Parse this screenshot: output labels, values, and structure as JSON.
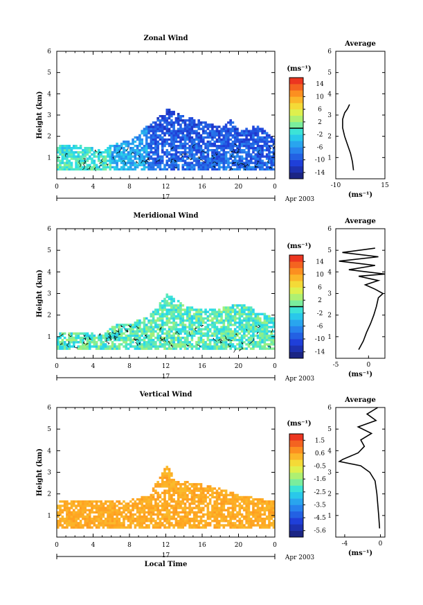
{
  "chart_data": [
    {
      "type": "heatmap",
      "title": "Zonal Wind",
      "xlabel": "",
      "ylabel": "Height (km)",
      "xlim": [
        0,
        24
      ],
      "ylim": [
        0,
        6
      ],
      "x_ticks": [
        "0",
        "4",
        "8",
        "12",
        "16",
        "20",
        "0"
      ],
      "y_ticks": [
        "1",
        "2",
        "3",
        "4",
        "5",
        "6"
      ],
      "date_day": "17",
      "date_label": "Apr 2003",
      "colorbar": {
        "unit": "(ms⁻¹)",
        "ticks": [
          "14",
          "10",
          "6",
          "2",
          "-2",
          "-6",
          "-10",
          "-14"
        ],
        "range": [
          -16,
          16
        ],
        "zero_line": 0
      },
      "data_extent": [
        {
          "t": 0,
          "top": 1.6
        },
        {
          "t": 2,
          "top": 1.6
        },
        {
          "t": 5,
          "top": 1.3
        },
        {
          "t": 6,
          "top": 1.6
        },
        {
          "t": 8,
          "top": 1.8
        },
        {
          "t": 10,
          "top": 2.5
        },
        {
          "t": 12,
          "top": 3.3
        },
        {
          "t": 14,
          "top": 2.9
        },
        {
          "t": 16,
          "top": 2.7
        },
        {
          "t": 18,
          "top": 2.4
        },
        {
          "t": 19,
          "top": 2.8
        },
        {
          "t": 20,
          "top": 2.2
        },
        {
          "t": 22,
          "top": 2.5
        },
        {
          "t": 24,
          "top": 1.8
        }
      ],
      "average_profile": {
        "title": "Average",
        "xlabel": "(ms⁻¹)",
        "xlim": [
          -10,
          15
        ],
        "x_ticks": [
          "-10",
          "15"
        ],
        "y_ticks": [
          "1",
          "2",
          "3",
          "4",
          "5",
          "6"
        ],
        "heights": [
          0.4,
          0.8,
          1.2,
          1.6,
          2.0,
          2.4,
          2.8,
          3.1,
          3.3,
          3.5
        ],
        "values": [
          -1,
          -1.5,
          -2.5,
          -4,
          -5.5,
          -6.5,
          -6.5,
          -5.5,
          -4,
          -3
        ]
      }
    },
    {
      "type": "heatmap",
      "title": "Meridional Wind",
      "xlabel": "",
      "ylabel": "Height (km)",
      "xlim": [
        0,
        24
      ],
      "ylim": [
        0,
        6
      ],
      "x_ticks": [
        "0",
        "4",
        "8",
        "12",
        "16",
        "20",
        "0"
      ],
      "y_ticks": [
        "1",
        "2",
        "3",
        "4",
        "5",
        "6"
      ],
      "date_day": "17",
      "date_label": "Apr 2003",
      "colorbar": {
        "unit": "(ms⁻¹)",
        "ticks": [
          "14",
          "10",
          "6",
          "2",
          "-2",
          "-6",
          "-10",
          "-14"
        ],
        "range": [
          -16,
          16
        ],
        "zero_line": 0
      },
      "data_extent": [
        {
          "t": 0,
          "top": 1.1
        },
        {
          "t": 3,
          "top": 1.2
        },
        {
          "t": 5,
          "top": 1.0
        },
        {
          "t": 6,
          "top": 1.5
        },
        {
          "t": 8,
          "top": 1.6
        },
        {
          "t": 10,
          "top": 1.9
        },
        {
          "t": 11,
          "top": 2.4
        },
        {
          "t": 12,
          "top": 3.0
        },
        {
          "t": 13,
          "top": 2.7
        },
        {
          "t": 14,
          "top": 2.4
        },
        {
          "t": 16,
          "top": 2.2
        },
        {
          "t": 18,
          "top": 2.3
        },
        {
          "t": 20,
          "top": 2.5
        },
        {
          "t": 22,
          "top": 2.2
        },
        {
          "t": 24,
          "top": 1.8
        }
      ],
      "average_profile": {
        "title": "Average",
        "xlabel": "(ms⁻¹)",
        "xlim": [
          -5,
          2.5
        ],
        "x_ticks": [
          "-5",
          "0"
        ],
        "y_ticks": [
          "1",
          "2",
          "3",
          "4",
          "5",
          "6"
        ],
        "heights": [
          0.4,
          0.8,
          1.2,
          1.6,
          2.0,
          2.4,
          2.8,
          3.0,
          3.2,
          3.4,
          3.6,
          3.8,
          3.9,
          4.1,
          4.3,
          4.5,
          4.7,
          4.9,
          5.1
        ],
        "values": [
          -1.5,
          -0.8,
          -0.3,
          0.3,
          0.8,
          1.2,
          1.5,
          2.2,
          1.0,
          -0.5,
          1.5,
          -1.5,
          2.5,
          -3.0,
          1.0,
          -4.5,
          1.5,
          -4.0,
          1.0
        ]
      }
    },
    {
      "type": "heatmap",
      "title": "Vertical Wind",
      "xlabel": "Local Time",
      "ylabel": "Height (km)",
      "xlim": [
        0,
        24
      ],
      "ylim": [
        0,
        6
      ],
      "x_ticks": [
        "0",
        "4",
        "8",
        "12",
        "16",
        "20",
        "0"
      ],
      "y_ticks": [
        "1",
        "2",
        "3",
        "4",
        "5",
        "6"
      ],
      "date_day": "17",
      "date_label": "Apr 2003",
      "colorbar": {
        "unit": "(ms⁻¹)",
        "ticks": [
          "1.5",
          "0.6",
          "-0.5",
          "-1.6",
          "-2.5",
          "-3.5",
          "-4.5",
          "-5.6"
        ],
        "range": [
          -6,
          2
        ],
        "zero_line": null
      },
      "data_extent": [
        {
          "t": 0,
          "top": 1.6
        },
        {
          "t": 4,
          "top": 1.7
        },
        {
          "t": 8,
          "top": 1.7
        },
        {
          "t": 10,
          "top": 1.9
        },
        {
          "t": 12,
          "top": 3.3
        },
        {
          "t": 13,
          "top": 2.6
        },
        {
          "t": 16,
          "top": 2.4
        },
        {
          "t": 18,
          "top": 2.2
        },
        {
          "t": 20,
          "top": 1.9
        },
        {
          "t": 24,
          "top": 1.6
        }
      ],
      "average_profile": {
        "title": "Average",
        "xlabel": "(ms⁻¹)",
        "xlim": [
          -5,
          0.5
        ],
        "x_ticks": [
          "-4",
          "0"
        ],
        "y_ticks": [
          "1",
          "2",
          "3",
          "4",
          "5",
          "6"
        ],
        "heights": [
          0.4,
          1.0,
          2.0,
          2.6,
          3.0,
          3.3,
          3.5,
          3.6,
          3.9,
          4.2,
          4.5,
          4.8,
          5.1,
          5.4,
          5.7,
          6.0
        ],
        "values": [
          -0.1,
          -0.2,
          -0.4,
          -0.6,
          -1.2,
          -2.2,
          -4.6,
          -4.2,
          -2.5,
          -1.8,
          -2.2,
          -1.0,
          -2.5,
          -0.5,
          -1.5,
          -0.3
        ]
      }
    }
  ]
}
